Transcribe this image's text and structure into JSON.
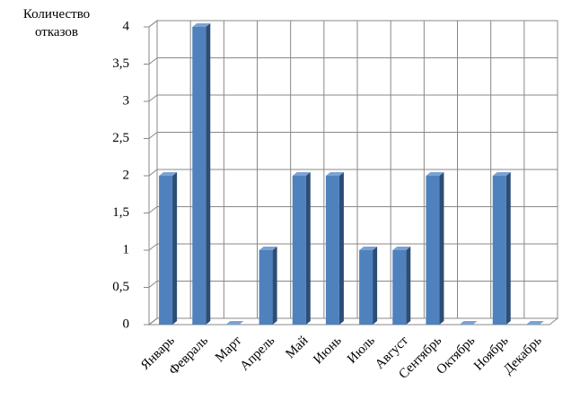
{
  "chart_data": {
    "type": "bar",
    "y_label": "Количество отказов",
    "categories": [
      "Январь",
      "Февраль",
      "Март",
      "Апрель",
      "Май",
      "Июнь",
      "Июль",
      "Август",
      "Сентябрь",
      "Октябрь",
      "Ноябрь",
      "Декабрь"
    ],
    "values": [
      2,
      4,
      0,
      1,
      2,
      2,
      1,
      1,
      2,
      0,
      2,
      0
    ],
    "color": "#4f81bd",
    "ylim": [
      0,
      4
    ],
    "yticks": [
      0,
      {
        "value": 0.5,
        "label": "0,5"
      },
      1,
      {
        "value": 1.5,
        "label": "1,5"
      },
      2,
      {
        "value": 2.5,
        "label": "2,5"
      },
      3,
      {
        "value": 3.5,
        "label": "3,5"
      },
      4
    ],
    "grid": true
  }
}
